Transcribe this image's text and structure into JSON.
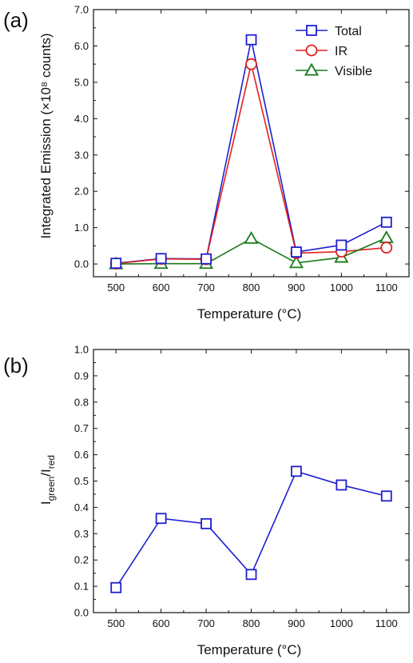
{
  "chart_data": [
    {
      "type": "line",
      "panel_label": "(a)",
      "xlabel": "Temperature (°C)",
      "ylabel": "Integrated Emission (×10⁸ counts)",
      "categories": [
        "500",
        "600",
        "700",
        "800",
        "900",
        "1000",
        "1100"
      ],
      "x": [
        500,
        600,
        700,
        800,
        900,
        1000,
        1100
      ],
      "xlim": [
        450,
        1150
      ],
      "ylim": [
        -0.35,
        7.0
      ],
      "yticks": [
        "0.0",
        "1.0",
        "2.0",
        "3.0",
        "4.0",
        "5.0",
        "6.0",
        "7.0"
      ],
      "ytick_values": [
        0,
        1,
        2,
        3,
        4,
        5,
        6,
        7
      ],
      "legend_position": "top-right",
      "series": [
        {
          "name": "Total",
          "color": "#1f1fd0",
          "marker": "square",
          "values": [
            0.02,
            0.15,
            0.14,
            6.17,
            0.33,
            0.52,
            1.15
          ]
        },
        {
          "name": "IR",
          "color": "#e02020",
          "marker": "circle",
          "values": [
            0.01,
            0.14,
            0.13,
            5.5,
            0.3,
            0.34,
            0.45
          ]
        },
        {
          "name": "Visible",
          "color": "#1a7a1a",
          "marker": "triangle",
          "values": [
            0.0,
            0.01,
            0.01,
            0.7,
            0.03,
            0.18,
            0.72
          ]
        }
      ]
    },
    {
      "type": "line",
      "panel_label": "(b)",
      "xlabel": "Temperature (°C)",
      "ylabel_main": "I",
      "ylabel_sub1": "green",
      "ylabel_mid": "/I",
      "ylabel_sub2": "red",
      "categories": [
        "500",
        "600",
        "700",
        "800",
        "900",
        "1000",
        "1100"
      ],
      "x": [
        500,
        600,
        700,
        800,
        900,
        1000,
        1100
      ],
      "xlim": [
        450,
        1150
      ],
      "ylim": [
        0.0,
        1.0
      ],
      "yticks": [
        "0.0",
        "0.1",
        "0.2",
        "0.3",
        "0.4",
        "0.5",
        "0.6",
        "0.7",
        "0.8",
        "0.9",
        "1.0"
      ],
      "ytick_values": [
        0,
        0.1,
        0.2,
        0.3,
        0.4,
        0.5,
        0.6,
        0.7,
        0.8,
        0.9,
        1.0
      ],
      "series": [
        {
          "color": "#1f1fd0",
          "marker": "square",
          "values": [
            0.095,
            0.358,
            0.338,
            0.145,
            0.537,
            0.485,
            0.443
          ]
        }
      ]
    }
  ]
}
